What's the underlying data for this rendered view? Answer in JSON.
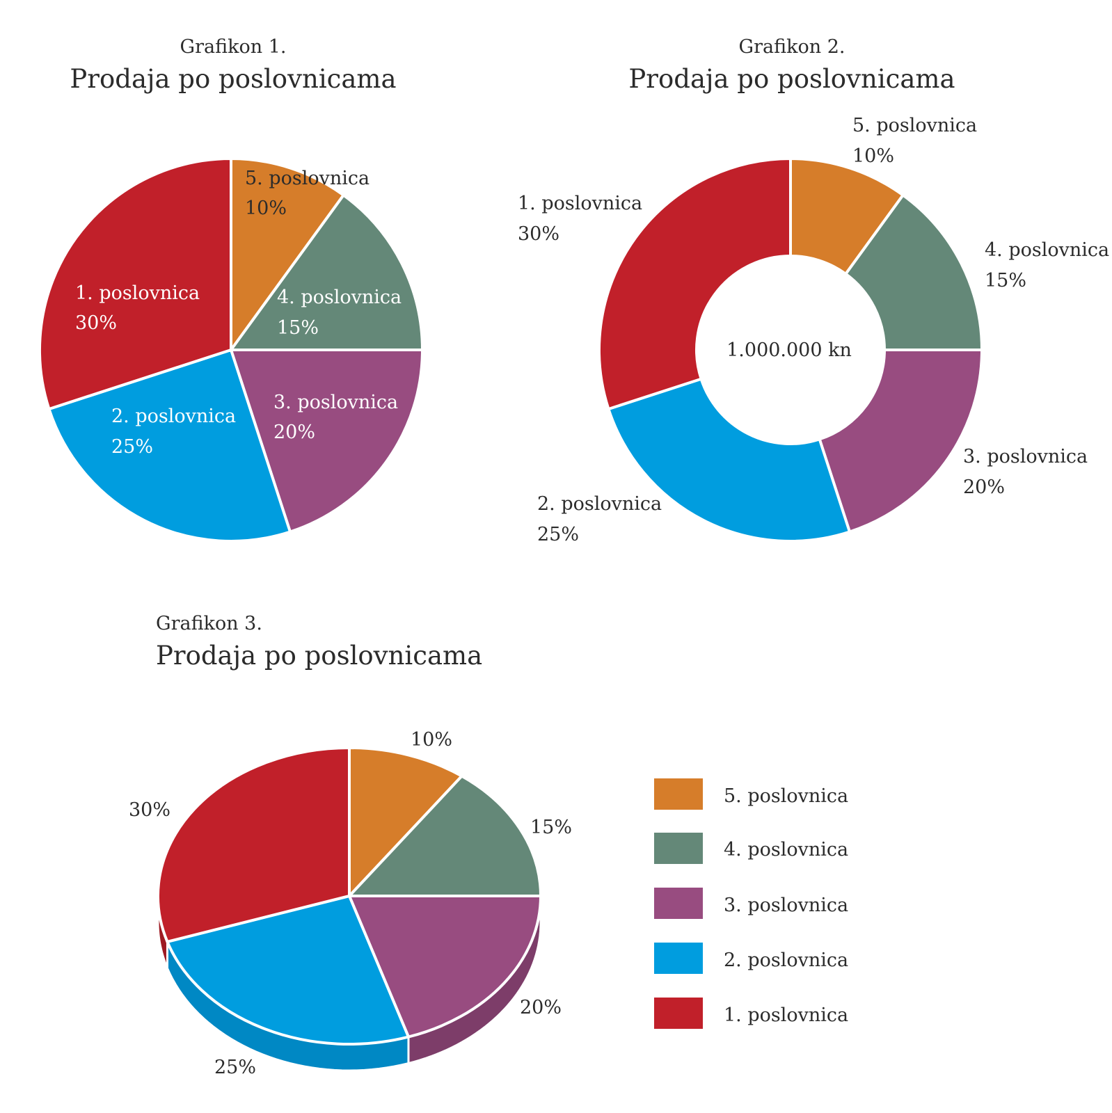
{
  "colors": {
    "p1": "#c1202a",
    "p2": "#009ddf",
    "p3": "#984c80",
    "p4": "#648878",
    "p5": "#d67d2a",
    "p1_dark": "#9e1a22",
    "p2_dark": "#0088c4",
    "p3_dark": "#7d3d69"
  },
  "chart_data": [
    {
      "type": "pie",
      "subtitle": "Grafikon 1.",
      "title": "Prodaja po poslovnicama",
      "slices": [
        {
          "label": "5. poslovnica",
          "value": 10,
          "value_label": "10%"
        },
        {
          "label": "4. poslovnica",
          "value": 15,
          "value_label": "15%"
        },
        {
          "label": "3. poslovnica",
          "value": 20,
          "value_label": "20%"
        },
        {
          "label": "2. poslovnica",
          "value": 25,
          "value_label": "25%"
        },
        {
          "label": "1. poslovnica",
          "value": 30,
          "value_label": "30%"
        }
      ]
    },
    {
      "type": "pie",
      "variant": "donut",
      "subtitle": "Grafikon 2.",
      "title": "Prodaja po poslovnicama",
      "center_label": "1.000.000 kn",
      "slices": [
        {
          "label": "5. poslovnica",
          "value": 10,
          "value_label": "10%"
        },
        {
          "label": "4. poslovnica",
          "value": 15,
          "value_label": "15%"
        },
        {
          "label": "3. poslovnica",
          "value": 20,
          "value_label": "20%"
        },
        {
          "label": "2. poslovnica",
          "value": 25,
          "value_label": "25%"
        },
        {
          "label": "1. poslovnica",
          "value": 30,
          "value_label": "30%"
        }
      ]
    },
    {
      "type": "pie",
      "variant": "3d",
      "subtitle": "Grafikon 3.",
      "title": "Prodaja po poslovnicama",
      "slices": [
        {
          "label": "5. poslovnica",
          "value": 10,
          "value_label": "10%"
        },
        {
          "label": "4. poslovnica",
          "value": 15,
          "value_label": "15%"
        },
        {
          "label": "3. poslovnica",
          "value": 20,
          "value_label": "20%"
        },
        {
          "label": "2. poslovnica",
          "value": 25,
          "value_label": "25%"
        },
        {
          "label": "1. poslovnica",
          "value": 30,
          "value_label": "30%"
        }
      ],
      "legend": [
        "5. poslovnica",
        "4. poslovnica",
        "3. poslovnica",
        "2. poslovnica",
        "1. poslovnica"
      ]
    }
  ]
}
